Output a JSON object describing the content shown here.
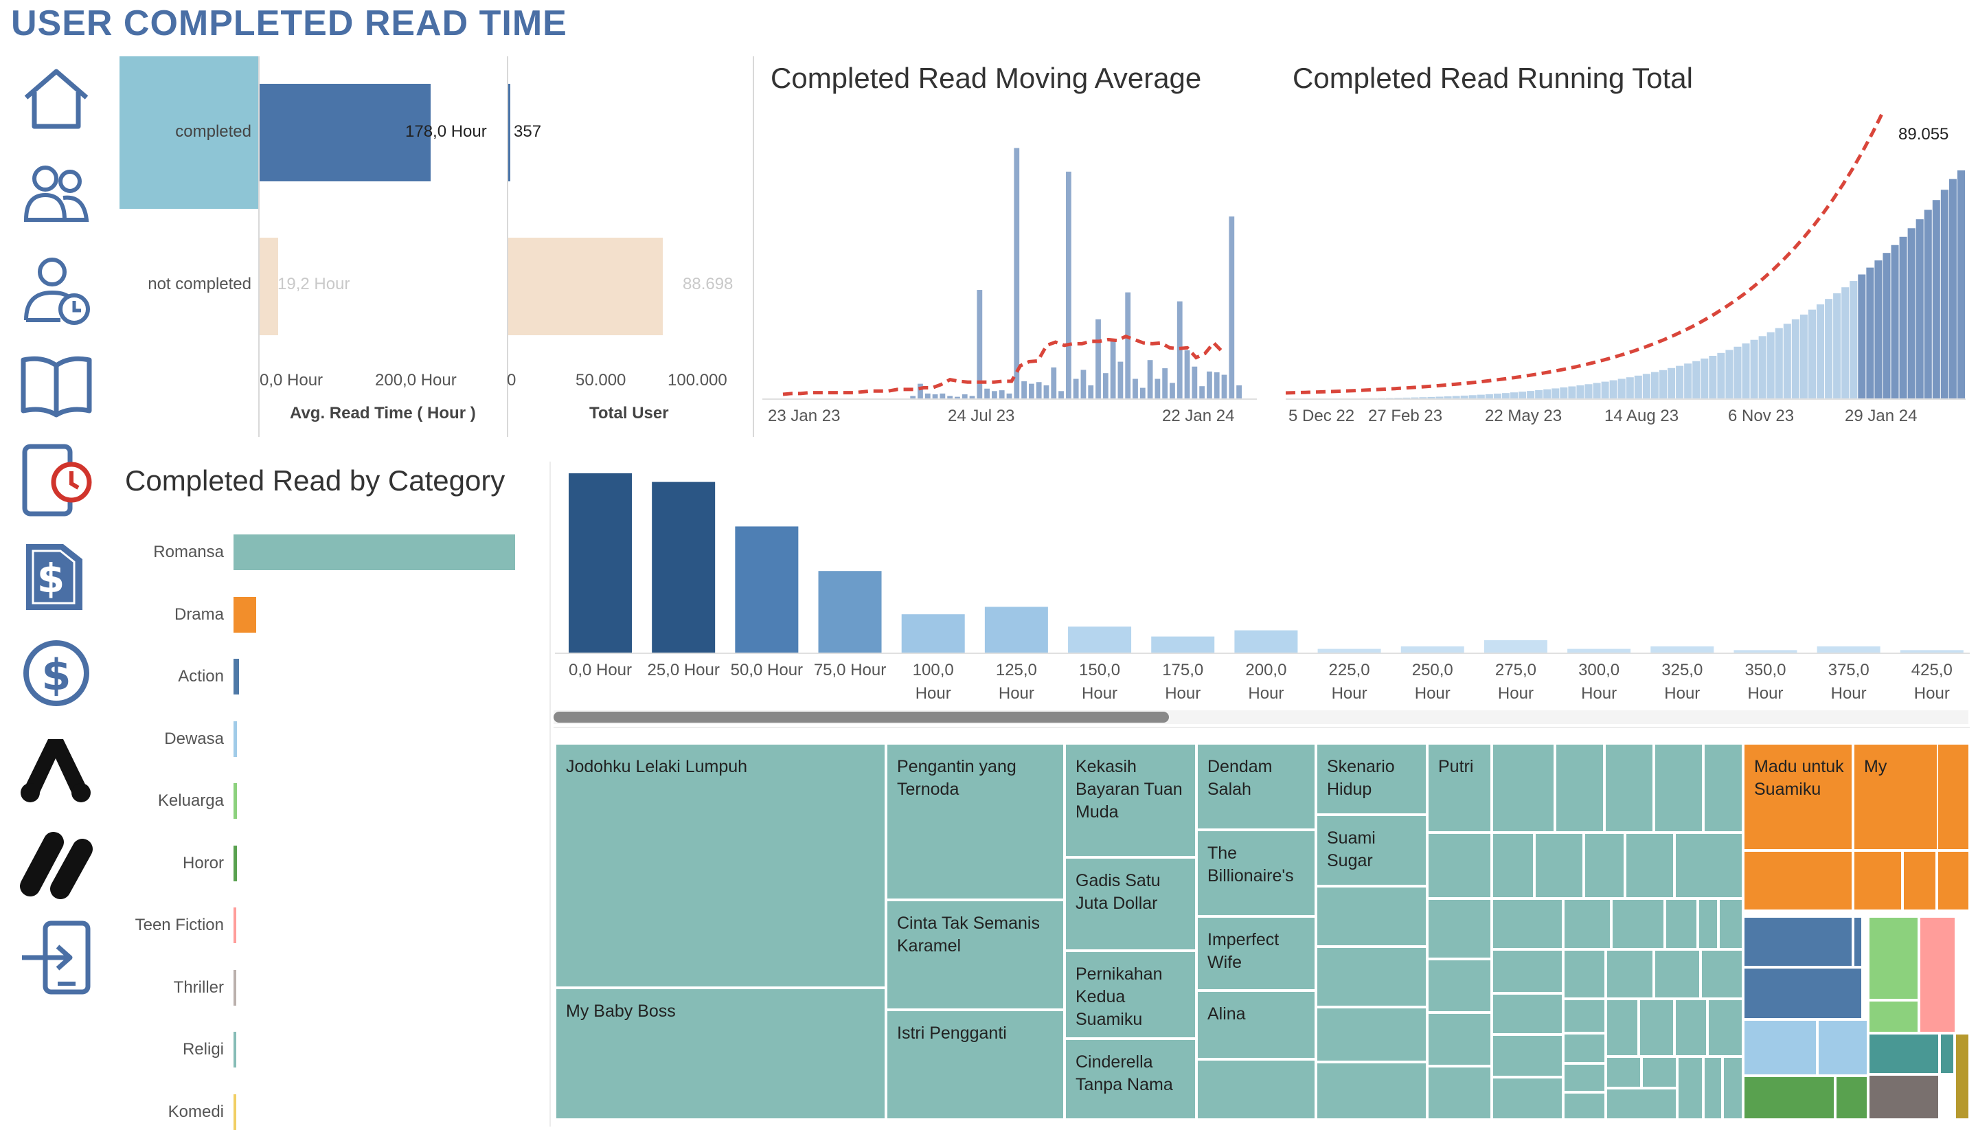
{
  "page": {
    "title": "USER COMPLETED READ TIME"
  },
  "nav": {
    "items": [
      {
        "name": "home-icon"
      },
      {
        "name": "users-icon"
      },
      {
        "name": "user-clock-icon"
      },
      {
        "name": "book-icon"
      },
      {
        "name": "tablet-timer-icon"
      },
      {
        "name": "dollar-document-icon"
      },
      {
        "name": "dollar-circle-icon"
      },
      {
        "name": "brand-logo-a-icon"
      },
      {
        "name": "brand-logo-slash-icon"
      },
      {
        "name": "login-icon"
      }
    ]
  },
  "summary": {
    "rows": [
      "completed",
      "not completed"
    ],
    "avg": {
      "values": [
        "178,0 Hour",
        "19,2 Hour"
      ],
      "ticks": [
        "0,0 Hour",
        "200,0 Hour"
      ],
      "axis_title": "Avg. Read Time ( Hour )"
    },
    "users": {
      "values": [
        "357",
        "88.698"
      ],
      "ticks": [
        "0",
        "50.000",
        "100.000"
      ],
      "axis_title": "Total User"
    },
    "colors": {
      "completed_highlight": "#8ec5d5",
      "completed_bar": "#4a74a8",
      "not_completed_bar": "#f3e0cc"
    }
  },
  "moving_avg": {
    "title": "Completed Read Moving Average",
    "ticks": [
      "23 Jan 23",
      "24 Jul 23",
      "22 Jan 24"
    ]
  },
  "running_total": {
    "title": "Completed Read Running Total",
    "ticks": [
      "5 Dec 22",
      "27 Feb 23",
      "22 May 23",
      "14 Aug 23",
      "6 Nov 23",
      "29 Jan 24"
    ],
    "last_label": "89.055"
  },
  "category": {
    "title": "Completed Read by Category",
    "items": [
      "Romansa",
      "Drama",
      "Action",
      "Dewasa",
      "Keluarga",
      "Horor",
      "Teen Fiction",
      "Thriller",
      "Religi",
      "Komedi"
    ]
  },
  "histogram": {
    "ticks_line1": [
      "0,0 Hour",
      "25,0 Hour",
      "50,0 Hour",
      "75,0 Hour",
      "100,0",
      "125,0",
      "150,0",
      "175,0",
      "200,0",
      "225,0",
      "250,0",
      "275,0",
      "300,0",
      "325,0",
      "350,0",
      "375,0",
      "425,0"
    ],
    "ticks_line2": [
      "",
      "",
      "",
      "",
      "Hour",
      "Hour",
      "Hour",
      "Hour",
      "Hour",
      "Hour",
      "Hour",
      "Hour",
      "Hour",
      "Hour",
      "Hour",
      "Hour",
      "Hour"
    ]
  },
  "treemap": {
    "labels": [
      "Jodohku Lelaki Lumpuh",
      "My Baby Boss",
      "Pengantin yang Ternoda",
      "Cinta Tak Semanis Karamel",
      "Istri Pengganti",
      "Kekasih Bayaran Tuan Muda",
      "Gadis Satu Juta Dollar",
      "Pernikahan Kedua Suamiku",
      "Cinderella Tanpa Nama",
      "Dendam Salah",
      "The Billionaire's",
      "Imperfect Wife",
      "Alina",
      "Skenario Hidup",
      "Suami Sugar",
      "Putri",
      "Madu untuk Suamiku",
      "My"
    ]
  },
  "chart_data": [
    {
      "type": "bar",
      "title": "",
      "categories": [
        "completed",
        "not completed"
      ],
      "series": [
        {
          "name": "Avg. Read Time ( Hour )",
          "values": [
            178.0,
            19.2
          ]
        },
        {
          "name": "Total User",
          "values": [
            357,
            88698
          ]
        }
      ],
      "xlim_avg": [
        0,
        300
      ],
      "xlim_users": [
        0,
        130000
      ]
    },
    {
      "type": "bar",
      "title": "Completed Read Moving Average",
      "x_range": [
        "2023-01-01",
        "2024-03-01"
      ],
      "ylim": [
        0,
        32
      ],
      "values": [
        0,
        0,
        0,
        0,
        0,
        0,
        0,
        0,
        0,
        0,
        0,
        0,
        0,
        0,
        0,
        0,
        0,
        0,
        0.3,
        1.8,
        0.6,
        0.5,
        0.6,
        0.3,
        0.2,
        0.5,
        0.3,
        13.3,
        1.2,
        0.9,
        1.0,
        0.6,
        30.7,
        2.1,
        1.8,
        2.0,
        1.6,
        3.8,
        0.9,
        27.8,
        2.4,
        3.5,
        1.6,
        9.7,
        3.1,
        7.3,
        4.5,
        13.0,
        2.4,
        1.3,
        4.7,
        2.4,
        3.7,
        1.9,
        11.9,
        5.9,
        3.9,
        1.5,
        3.3,
        3.2,
        2.9,
        22.3,
        1.6
      ],
      "moving_average_line": [
        0,
        0.1,
        0.1,
        0.2,
        0.2,
        0.2,
        0.2,
        0.2,
        0.2,
        0.3,
        0.4,
        0.4,
        0.4,
        0.6,
        0.6,
        0.6,
        0.8,
        0.8,
        1.2,
        1.8,
        1.6,
        1.5,
        1.5,
        1.5,
        1.5,
        1.6,
        1.6,
        3.5,
        4.0,
        4.1,
        6.0,
        6.4,
        6.0,
        6.2,
        6.2,
        6.5,
        6.5,
        6.7,
        6.6,
        7.1,
        6.7,
        6.3,
        6.2,
        6.3,
        5.7,
        5.6,
        5.7,
        4.5,
        5.0,
        6.3,
        5.2
      ]
    },
    {
      "type": "bar",
      "title": "Completed Read Running Total",
      "x_range": [
        "2022-12-05",
        "2024-02-26"
      ],
      "values": [
        40,
        80,
        120,
        170,
        230,
        300,
        380,
        470,
        570,
        680,
        810,
        950,
        1100,
        1270,
        1450,
        1650,
        1870,
        2100,
        2360,
        2630,
        2920,
        3230,
        3560,
        3910,
        4290,
        4690,
        5110,
        5560,
        6040,
        6550,
        7090,
        7660,
        8260,
        8900,
        9580,
        10300,
        11060,
        11870,
        12720,
        13620,
        14570,
        15580,
        16640,
        17760,
        18940,
        20190,
        21500,
        22880,
        24330,
        25860,
        27460,
        29140,
        30900,
        32750,
        34690,
        36720,
        38850,
        41080,
        43410,
        45860,
        48420,
        51090,
        53900,
        56830,
        59900,
        63110,
        66470,
        69980,
        73650,
        77480,
        81490,
        85680,
        89055
      ],
      "last_label": 89055,
      "trend_line": "exponential",
      "ylim": [
        0,
        110000
      ]
    },
    {
      "type": "bar",
      "title": "Completed Read by Category",
      "categories": [
        "Romansa",
        "Drama",
        "Action",
        "Dewasa",
        "Keluarga",
        "Horor",
        "Teen Fiction",
        "Thriller",
        "Religi",
        "Komedi"
      ],
      "values": [
        100,
        8,
        2,
        1.2,
        1.2,
        1.2,
        1.0,
        0.6,
        0.6,
        0.6
      ],
      "colors": [
        "#86bcb6",
        "#f28e2b",
        "#4e79a7",
        "#a0cbe8",
        "#8cd17d",
        "#59a14f",
        "#ff9d9a",
        "#bab0ac",
        "#86bcb6",
        "#f1ce63"
      ]
    },
    {
      "type": "bar",
      "title": "",
      "categories": [
        "0,0",
        "25,0",
        "50,0",
        "75,0",
        "100,0",
        "125,0",
        "150,0",
        "175,0",
        "200,0",
        "225,0",
        "250,0",
        "275,0",
        "300,0",
        "325,0",
        "350,0",
        "375,0",
        "425,0"
      ],
      "values": [
        145,
        138,
        102,
        66,
        31,
        37,
        21,
        13,
        18,
        3,
        5,
        10,
        3,
        5,
        2,
        5,
        2
      ],
      "ylim": [
        0,
        150
      ]
    },
    {
      "type": "treemap",
      "title": "",
      "items": [
        {
          "label": "Jodohku Lelaki Lumpuh",
          "color": "#86bcb6"
        },
        {
          "label": "My Baby Boss",
          "color": "#86bcb6"
        },
        {
          "label": "Pengantin yang Ternoda",
          "color": "#86bcb6"
        },
        {
          "label": "Cinta Tak Semanis Karamel",
          "color": "#86bcb6"
        },
        {
          "label": "Istri Pengganti",
          "color": "#86bcb6"
        },
        {
          "label": "Kekasih Bayaran Tuan Muda",
          "color": "#86bcb6"
        },
        {
          "label": "Gadis Satu Juta Dollar",
          "color": "#86bcb6"
        },
        {
          "label": "Pernikahan Kedua Suamiku",
          "color": "#86bcb6"
        },
        {
          "label": "Cinderella Tanpa Nama",
          "color": "#86bcb6"
        },
        {
          "label": "Dendam Salah",
          "color": "#86bcb6"
        },
        {
          "label": "The Billionaire's",
          "color": "#86bcb6"
        },
        {
          "label": "Imperfect Wife",
          "color": "#86bcb6"
        },
        {
          "label": "Alina",
          "color": "#86bcb6"
        },
        {
          "label": "Skenario Hidup",
          "color": "#86bcb6"
        },
        {
          "label": "Suami Sugar",
          "color": "#86bcb6"
        },
        {
          "label": "Putri",
          "color": "#86bcb6"
        },
        {
          "label": "Madu untuk Suamiku",
          "color": "#f28e2b"
        },
        {
          "label": "My",
          "color": "#f28e2b"
        }
      ]
    }
  ]
}
